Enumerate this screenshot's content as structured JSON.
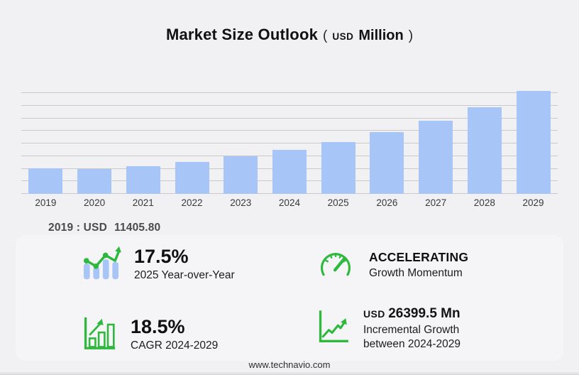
{
  "title": {
    "main": "Market Size Outlook",
    "paren_open": "(",
    "unit_currency": "USD",
    "unit": "Million",
    "paren_close": ")"
  },
  "chart_data": {
    "type": "bar",
    "title": "Market Size Outlook (USD Million)",
    "categories": [
      "2019",
      "2020",
      "2021",
      "2022",
      "2023",
      "2024",
      "2025",
      "2026",
      "2027",
      "2028",
      "2029"
    ],
    "values": [
      11405.8,
      11110,
      12550,
      14470,
      16760,
      19750.4,
      23206.7,
      27558,
      32725,
      38861,
      46149.9
    ],
    "xlabel": "",
    "ylabel": "USD Million",
    "ylim": [
      0,
      46500
    ],
    "gridlines": true,
    "gridline_count": 9,
    "legend": false,
    "bar_color": "#a7c5f6"
  },
  "base_year_note": {
    "label": "2019 : USD",
    "value": "11405.80"
  },
  "stats": {
    "yoy": {
      "value": "17.5%",
      "label": "2025 Year-over-Year",
      "icon": "trend-bars-icon"
    },
    "momentum": {
      "value": "ACCELERATING",
      "label": "Growth Momentum",
      "icon": "speedometer-icon"
    },
    "cagr": {
      "value": "18.5%",
      "label": "CAGR 2024-2029",
      "icon": "growth-bars-arrow-icon"
    },
    "incremental": {
      "prefix": "USD",
      "value": "26399.5 Mn",
      "label_line1": "Incremental Growth",
      "label_line2": "between 2024-2029",
      "icon": "line-growth-axes-icon"
    }
  },
  "footer": {
    "url": "www.technavio.com"
  },
  "colors": {
    "background": "#f1f1f3",
    "panel": "#f5f5f7",
    "bar_blue": "#a7c5f6",
    "accent_green": "#2fb83e",
    "gridline": "#c9c9cc"
  }
}
